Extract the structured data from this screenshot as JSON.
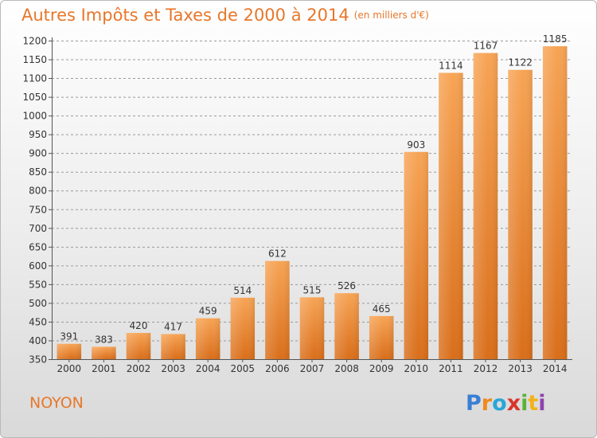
{
  "title": "Autres Impôts et Taxes de 2000 à 2014",
  "subtitle": "(en milliers d'€)",
  "location": "NOYON",
  "brand": "Proxiti",
  "colors": {
    "title": "#e8772a",
    "bar_top": "#f7a455",
    "bar_bottom": "#d96e1a",
    "grid": "#9a9a9a"
  },
  "chart_data": {
    "type": "bar",
    "title": "Autres Impôts et Taxes de 2000 à 2014",
    "subtitle": "(en milliers d'€)",
    "categories": [
      "2000",
      "2001",
      "2002",
      "2003",
      "2004",
      "2005",
      "2006",
      "2007",
      "2008",
      "2009",
      "2010",
      "2011",
      "2012",
      "2013",
      "2014"
    ],
    "values": [
      391,
      383,
      420,
      417,
      459,
      514,
      612,
      515,
      526,
      465,
      903,
      1114,
      1167,
      1122,
      1185
    ],
    "ylim": [
      350,
      1200
    ],
    "yticks": [
      350,
      400,
      450,
      500,
      550,
      600,
      650,
      700,
      750,
      800,
      850,
      900,
      950,
      1000,
      1050,
      1100,
      1150,
      1200
    ],
    "grid": "horizontal dashed"
  }
}
